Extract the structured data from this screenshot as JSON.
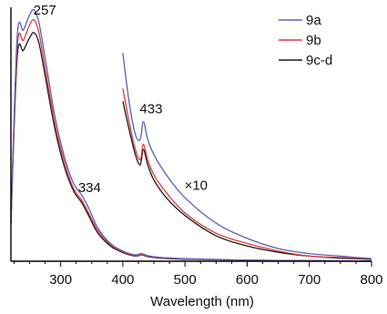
{
  "chart_data": {
    "type": "line",
    "xlabel": "Wavelength (nm)",
    "ylabel": "",
    "xlim": [
      220,
      800
    ],
    "ylim": [
      0,
      1.0
    ],
    "x_ticks": [
      300,
      400,
      500,
      600,
      700,
      800
    ],
    "x_tick_labels": [
      "300",
      "400",
      "500",
      "600",
      "700",
      "800"
    ],
    "y_ticks_shown": false,
    "grid": false,
    "legend_position": "top-right",
    "series": [
      {
        "name": "9a",
        "color": "#5b60b8",
        "x": [
          220,
          230,
          240,
          250,
          257,
          265,
          275,
          290,
          305,
          320,
          334,
          345,
          360,
          380,
          400,
          420,
          430,
          440,
          460,
          500,
          550,
          600,
          650,
          700,
          750,
          800
        ],
        "y": [
          0.15,
          0.88,
          0.91,
          0.97,
          0.99,
          0.94,
          0.8,
          0.58,
          0.42,
          0.31,
          0.26,
          0.21,
          0.13,
          0.07,
          0.04,
          0.025,
          0.03,
          0.022,
          0.015,
          0.01,
          0.007,
          0.004,
          0.003,
          0.002,
          0.001,
          0.0
        ]
      },
      {
        "name": "9b",
        "color": "#e03a3a",
        "x": [
          220,
          230,
          240,
          250,
          257,
          265,
          275,
          290,
          305,
          320,
          334,
          345,
          360,
          380,
          400,
          420,
          430,
          440,
          460,
          500,
          550,
          600,
          650,
          700,
          750,
          800
        ],
        "y": [
          0.15,
          0.84,
          0.87,
          0.93,
          0.95,
          0.9,
          0.76,
          0.55,
          0.4,
          0.29,
          0.24,
          0.19,
          0.12,
          0.065,
          0.037,
          0.022,
          0.027,
          0.02,
          0.013,
          0.009,
          0.006,
          0.004,
          0.003,
          0.002,
          0.001,
          0.0
        ]
      },
      {
        "name": "9c-d",
        "color": "#1a1a1a",
        "x": [
          220,
          230,
          240,
          250,
          257,
          265,
          275,
          290,
          305,
          320,
          334,
          345,
          360,
          380,
          400,
          420,
          430,
          440,
          460,
          500,
          550,
          600,
          650,
          700,
          750,
          800
        ],
        "y": [
          0.15,
          0.8,
          0.83,
          0.88,
          0.9,
          0.86,
          0.73,
          0.53,
          0.38,
          0.28,
          0.23,
          0.18,
          0.11,
          0.06,
          0.034,
          0.02,
          0.025,
          0.018,
          0.012,
          0.008,
          0.006,
          0.004,
          0.003,
          0.002,
          0.001,
          0.0
        ]
      }
    ],
    "inset_x10": [
      {
        "name": "9a",
        "color": "#5b60b8",
        "x": [
          400,
          410,
          420,
          428,
          433,
          440,
          450,
          470,
          500,
          550,
          600,
          650,
          700,
          750,
          800
        ],
        "y": [
          0.82,
          0.63,
          0.5,
          0.48,
          0.55,
          0.48,
          0.42,
          0.34,
          0.25,
          0.15,
          0.09,
          0.05,
          0.03,
          0.02,
          0.01
        ]
      },
      {
        "name": "9b",
        "color": "#e03a3a",
        "x": [
          400,
          410,
          420,
          428,
          433,
          440,
          450,
          470,
          500,
          550,
          600,
          650,
          700,
          750,
          800
        ],
        "y": [
          0.68,
          0.55,
          0.44,
          0.4,
          0.46,
          0.4,
          0.34,
          0.27,
          0.19,
          0.11,
          0.07,
          0.04,
          0.02,
          0.015,
          0.01
        ]
      },
      {
        "name": "9c-d",
        "color": "#1a1a1a",
        "x": [
          400,
          410,
          420,
          428,
          433,
          440,
          450,
          470,
          500,
          550,
          600,
          650,
          700,
          750,
          800
        ],
        "y": [
          0.63,
          0.52,
          0.42,
          0.38,
          0.44,
          0.38,
          0.32,
          0.25,
          0.18,
          0.1,
          0.06,
          0.035,
          0.02,
          0.012,
          0.008
        ]
      }
    ],
    "annotations": [
      {
        "text": "257",
        "x": 262,
        "y": 0.99
      },
      {
        "text": "334",
        "x": 334,
        "y": 0.29
      },
      {
        "text": "433",
        "x": 433,
        "y": 0.6
      },
      {
        "text": "×10",
        "x": 505,
        "y": 0.3
      }
    ]
  }
}
